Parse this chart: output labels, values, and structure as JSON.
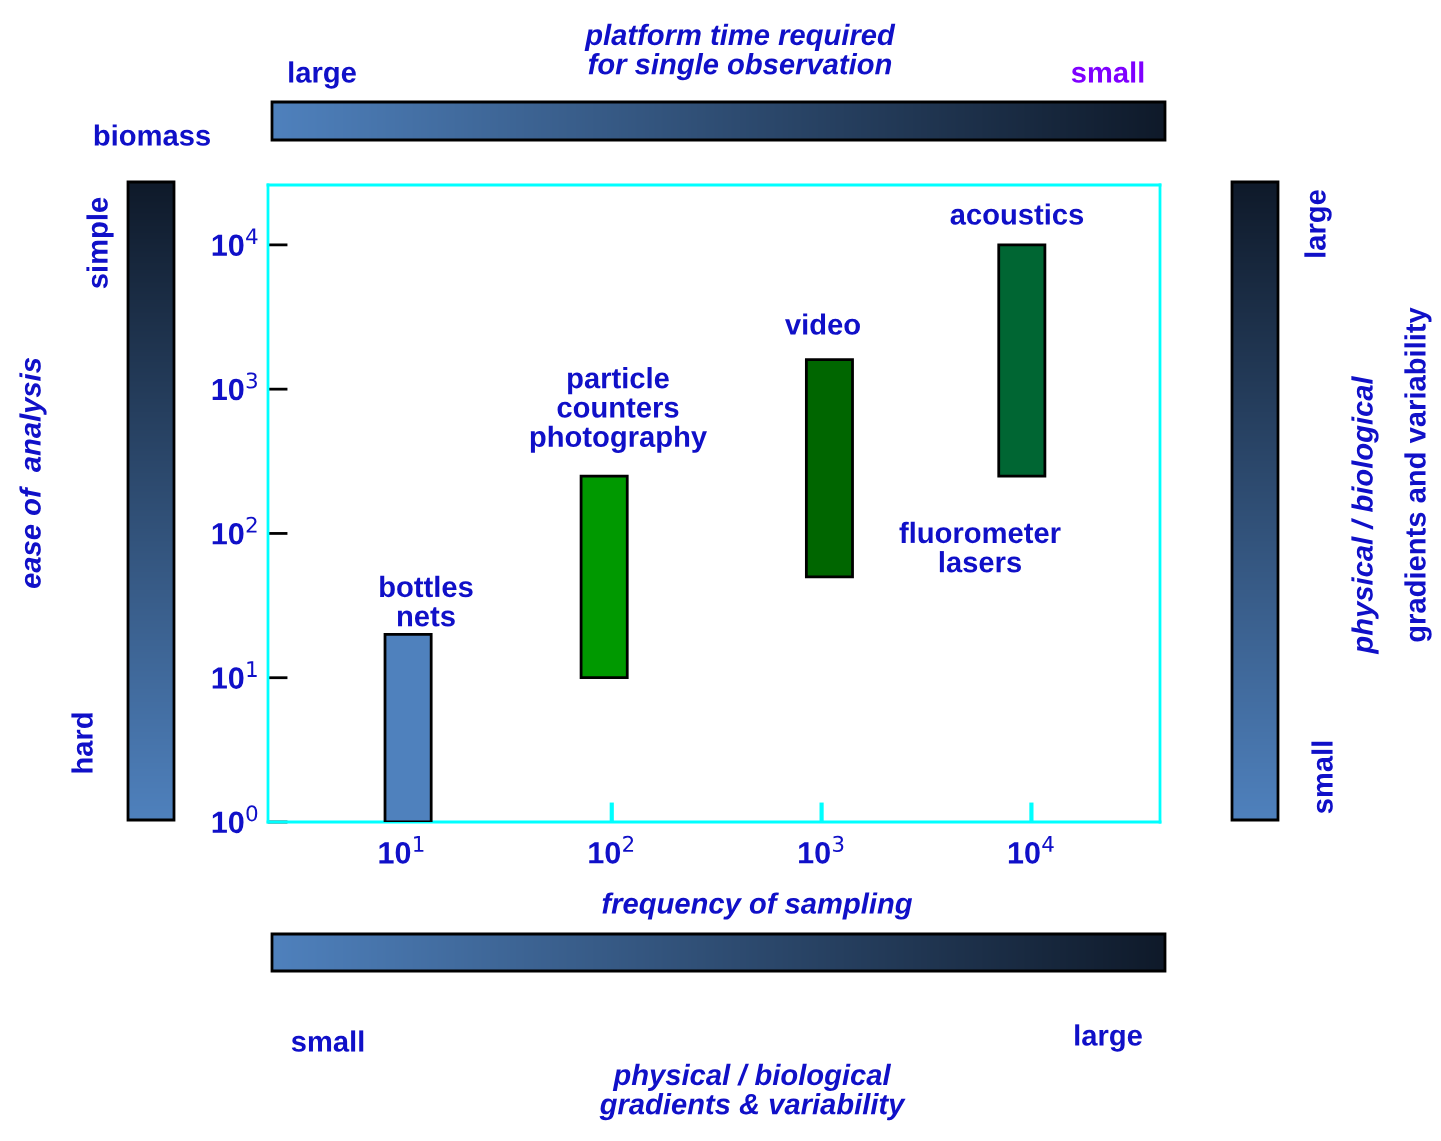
{
  "chart_data": {
    "type": "bar",
    "title": "platform time required\nfor single observation",
    "xlabel": "frequency of sampling",
    "ylabel": "biomass",
    "x": [
      10.7,
      92,
      1090,
      9000
    ],
    "base": [
      1,
      10,
      50,
      250
    ],
    "values": [
      19,
      240,
      1550,
      9750
    ],
    "colors": [
      "#4f81bd",
      "#009900",
      "#006600",
      "#006633"
    ],
    "log": "xy",
    "xlim": [
      2.3,
      41000
    ],
    "ylim": [
      1,
      26000
    ],
    "xticks": [
      {
        "value": 10,
        "label": "10$^{1}$"
      },
      {
        "value": 100,
        "label": "10$^{2}$"
      },
      {
        "value": 1000,
        "label": "10$^{3}$"
      },
      {
        "value": 10000,
        "label": "10$^{4}$"
      }
    ],
    "yticks": [
      {
        "value": 1,
        "label": "10$^{0}$"
      },
      {
        "value": 10,
        "label": "10$^{1}$"
      },
      {
        "value": 100,
        "label": "10$^{2}$"
      },
      {
        "value": 1000,
        "label": "10$^{3}$"
      },
      {
        "value": 10000,
        "label": "10$^{4}$"
      }
    ],
    "grid": false,
    "legend": false,
    "annotations": [
      "bottles\nnets",
      "particle\ncounters\nphotography",
      "video",
      "acoustics",
      "fluorometer\nlasers",
      "large",
      "small",
      "ease of  analysis",
      "simple",
      "hard",
      "large",
      "small",
      "physical / biological",
      "gradients and variability",
      "small",
      "large",
      "physical / biological\ngradients & variability"
    ]
  }
}
